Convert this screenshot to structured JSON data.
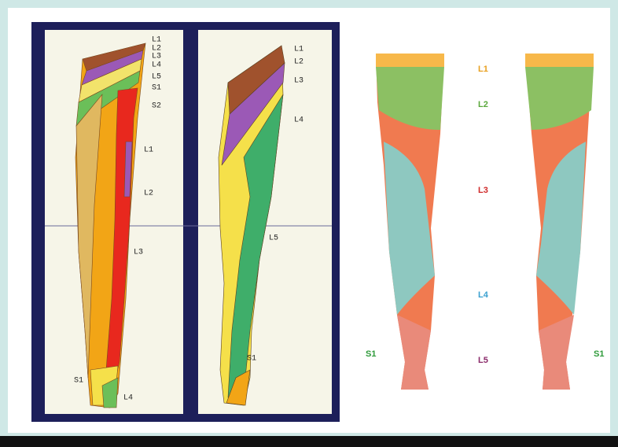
{
  "anterior_labels": [
    "L1",
    "L2",
    "L3",
    "L4",
    "L5",
    "S1",
    "S2",
    "L1",
    "L2",
    "L3",
    "S1",
    "L4"
  ],
  "posterior_labels": [
    "L1",
    "L2",
    "L3",
    "L4",
    "L5",
    "S1"
  ],
  "right_labels": [
    "L1",
    "L2",
    "L3",
    "L4",
    "L5",
    "S1",
    "S1"
  ]
}
